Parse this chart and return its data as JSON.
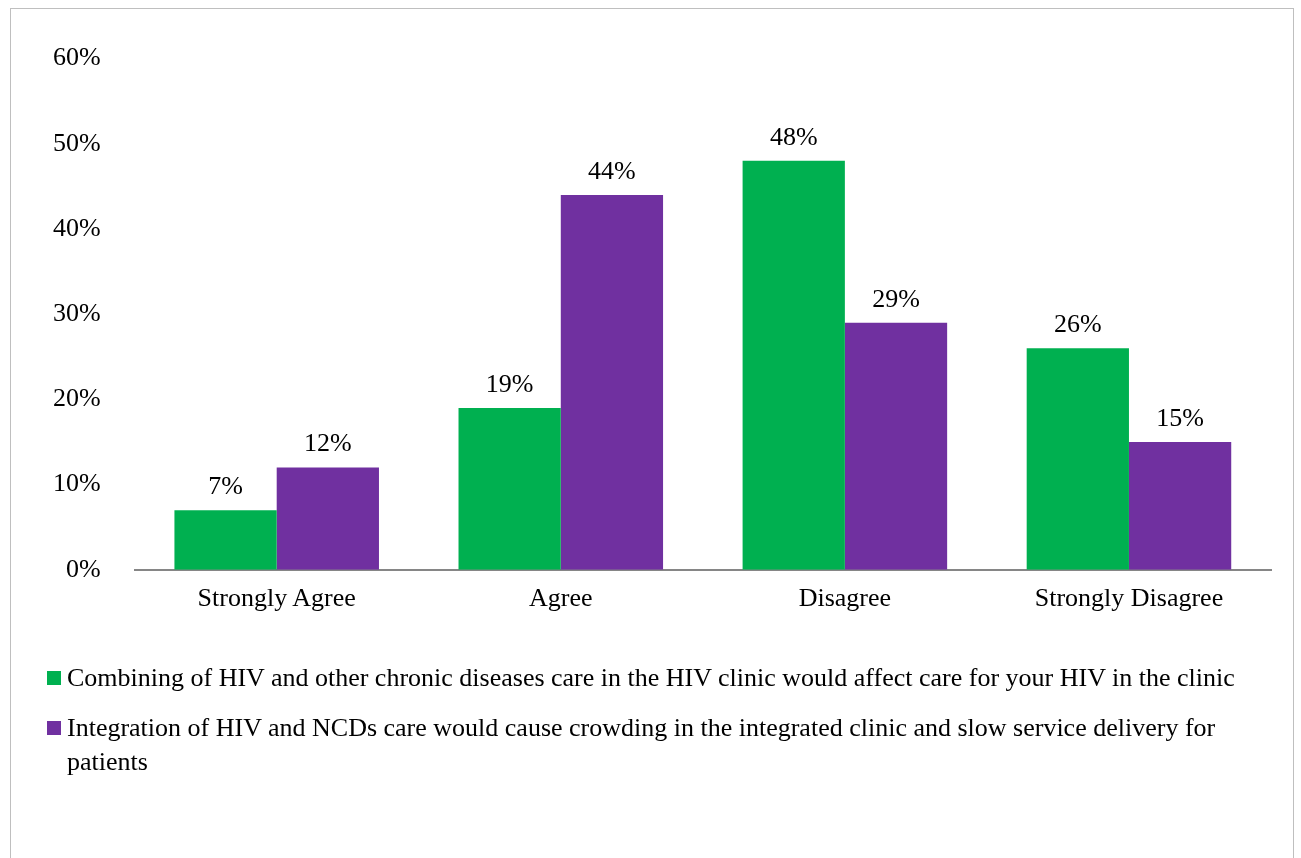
{
  "chart_data": {
    "type": "bar",
    "categories": [
      "Strongly Agree",
      "Agree",
      "Disagree",
      "Strongly Disagree"
    ],
    "series": [
      {
        "name": "Combining of HIV and other chronic diseases care in the HIV clinic would affect care for your HIV in the clinic",
        "color": "#00b050",
        "values": [
          7,
          19,
          48,
          26
        ],
        "value_labels": [
          "7%",
          "19%",
          "48%",
          "26%"
        ]
      },
      {
        "name": "Integration of HIV and NCDs care would cause crowding in the integrated clinic and slow service delivery for patients",
        "color": "#7030a0",
        "values": [
          12,
          44,
          29,
          15
        ],
        "value_labels": [
          "12%",
          "44%",
          "29%",
          "15%"
        ]
      }
    ],
    "ylim": [
      0,
      60
    ],
    "yticks": [
      {
        "value": 0,
        "label": "0%"
      },
      {
        "value": 10,
        "label": "10%"
      },
      {
        "value": 20,
        "label": "20%"
      },
      {
        "value": 30,
        "label": "30%"
      },
      {
        "value": 40,
        "label": "40%"
      },
      {
        "value": 50,
        "label": "50%"
      },
      {
        "value": 60,
        "label": "60%"
      }
    ],
    "grid": false,
    "legend": "bottom"
  }
}
